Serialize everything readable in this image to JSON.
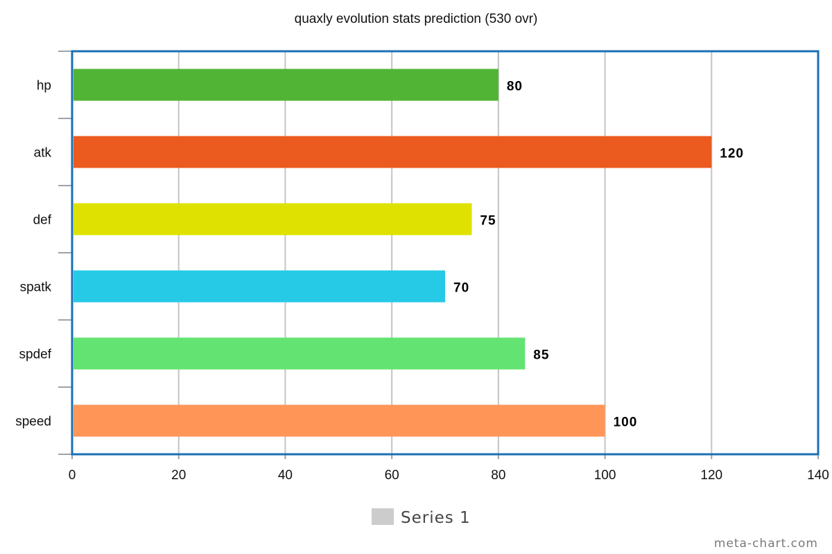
{
  "chart_data": {
    "type": "bar",
    "orientation": "horizontal",
    "title": "quaxly evolution stats prediction (530 ovr)",
    "categories": [
      "hp",
      "atk",
      "def",
      "spatk",
      "spdef",
      "speed"
    ],
    "values": [
      80,
      120,
      75,
      70,
      85,
      100
    ],
    "bar_colors": [
      "#52b435",
      "#eb5a1f",
      "#dfe100",
      "#26cae6",
      "#63e472",
      "#ff9658"
    ],
    "series": [
      {
        "name": "Series 1",
        "values": [
          80,
          120,
          75,
          70,
          85,
          100
        ]
      }
    ],
    "xlim": [
      0,
      140
    ],
    "x_ticks": [
      0,
      20,
      40,
      60,
      80,
      100,
      120,
      140
    ],
    "xlabel": "",
    "ylabel": "",
    "grid": true,
    "legend": {
      "position": "bottom",
      "entries": [
        {
          "label": "Series 1",
          "color": "#cccccc"
        }
      ]
    },
    "frame_color": "#1a6fb4",
    "grid_color": "#c4c4c4"
  },
  "credit": "meta-chart.com"
}
